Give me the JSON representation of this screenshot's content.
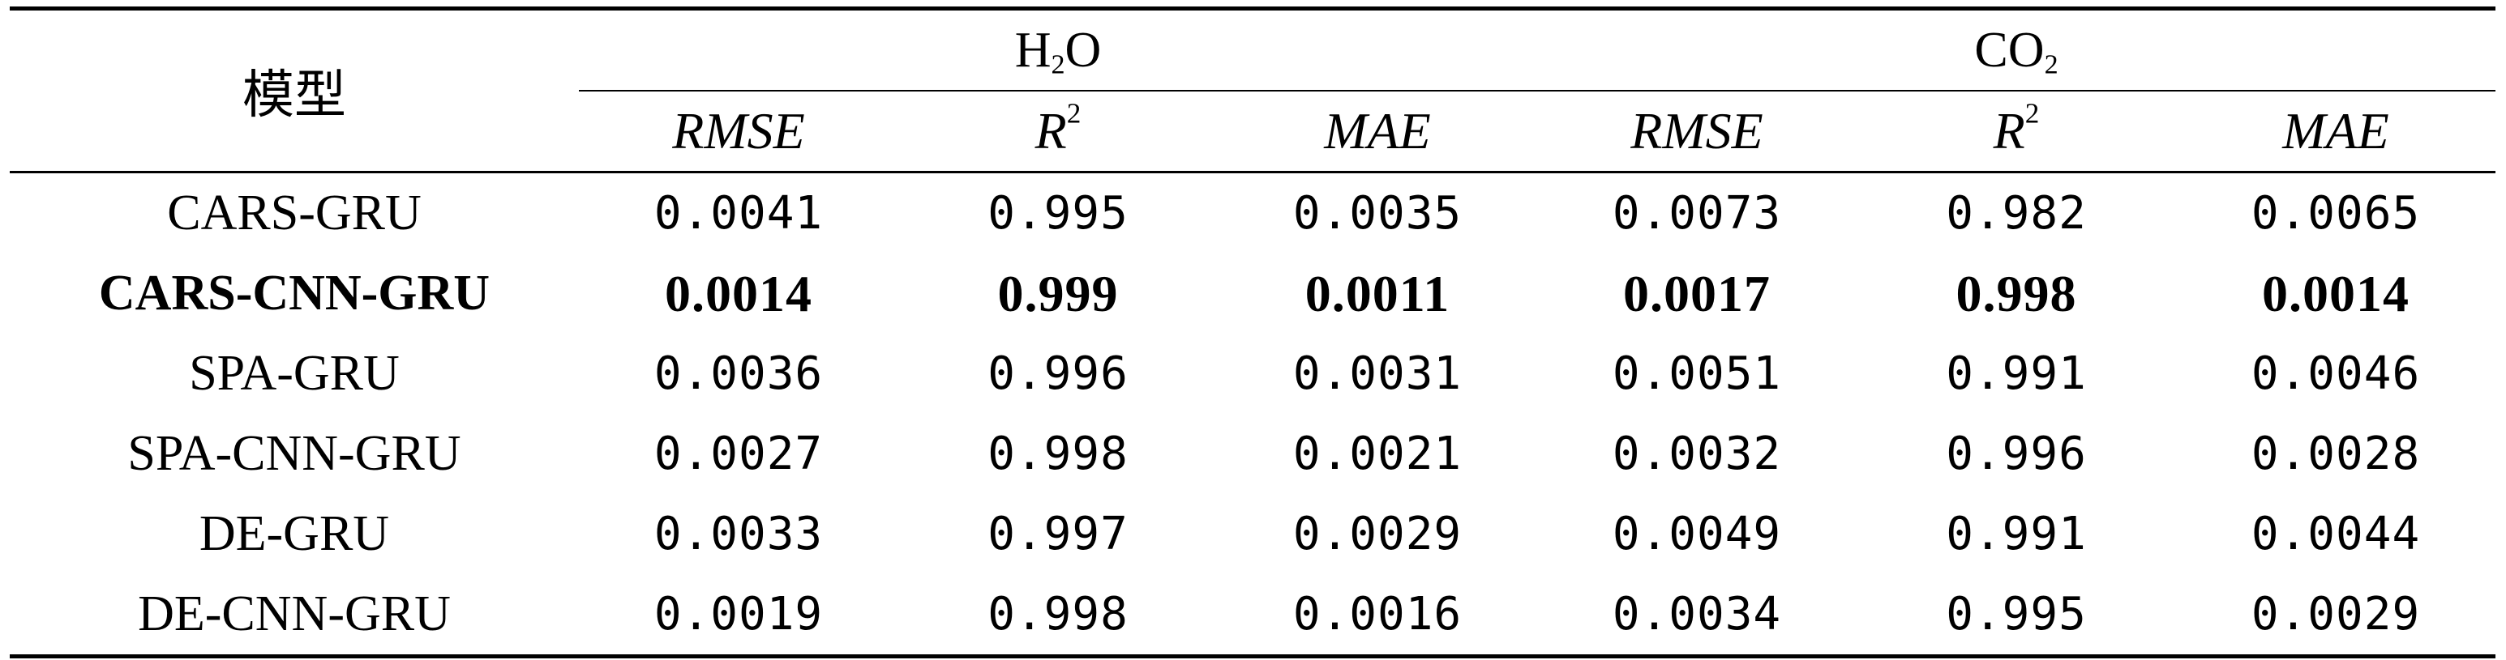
{
  "table": {
    "model_header": "模型",
    "groups": [
      {
        "base": "H",
        "sub": "2",
        "tail": "O"
      },
      {
        "base": "CO",
        "sub": "2",
        "tail": ""
      }
    ],
    "metrics": [
      {
        "base": "RMSE",
        "sup": ""
      },
      {
        "base": "R",
        "sup": "2"
      },
      {
        "base": "MAE",
        "sup": ""
      },
      {
        "base": "RMSE",
        "sup": ""
      },
      {
        "base": "R",
        "sup": "2"
      },
      {
        "base": "MAE",
        "sup": ""
      }
    ],
    "rows": [
      {
        "model": "CARS-GRU",
        "values": [
          "0.0041",
          "0.995",
          "0.0035",
          "0.0073",
          "0.982",
          "0.0065"
        ]
      },
      {
        "model": "CARS-CNN-GRU",
        "values": [
          "0.0014",
          "0.999",
          "0.0011",
          "0.0017",
          "0.998",
          "0.0014"
        ]
      },
      {
        "model": "SPA-GRU",
        "values": [
          "0.0036",
          "0.996",
          "0.0031",
          "0.0051",
          "0.991",
          "0.0046"
        ]
      },
      {
        "model": "SPA-CNN-GRU",
        "values": [
          "0.0027",
          "0.998",
          "0.0021",
          "0.0032",
          "0.996",
          "0.0028"
        ]
      },
      {
        "model": "DE-GRU",
        "values": [
          "0.0033",
          "0.997",
          "0.0029",
          "0.0049",
          "0.991",
          "0.0044"
        ]
      },
      {
        "model": "DE-CNN-GRU",
        "values": [
          "0.0019",
          "0.998",
          "0.0016",
          "0.0034",
          "0.995",
          "0.0029"
        ]
      }
    ]
  }
}
